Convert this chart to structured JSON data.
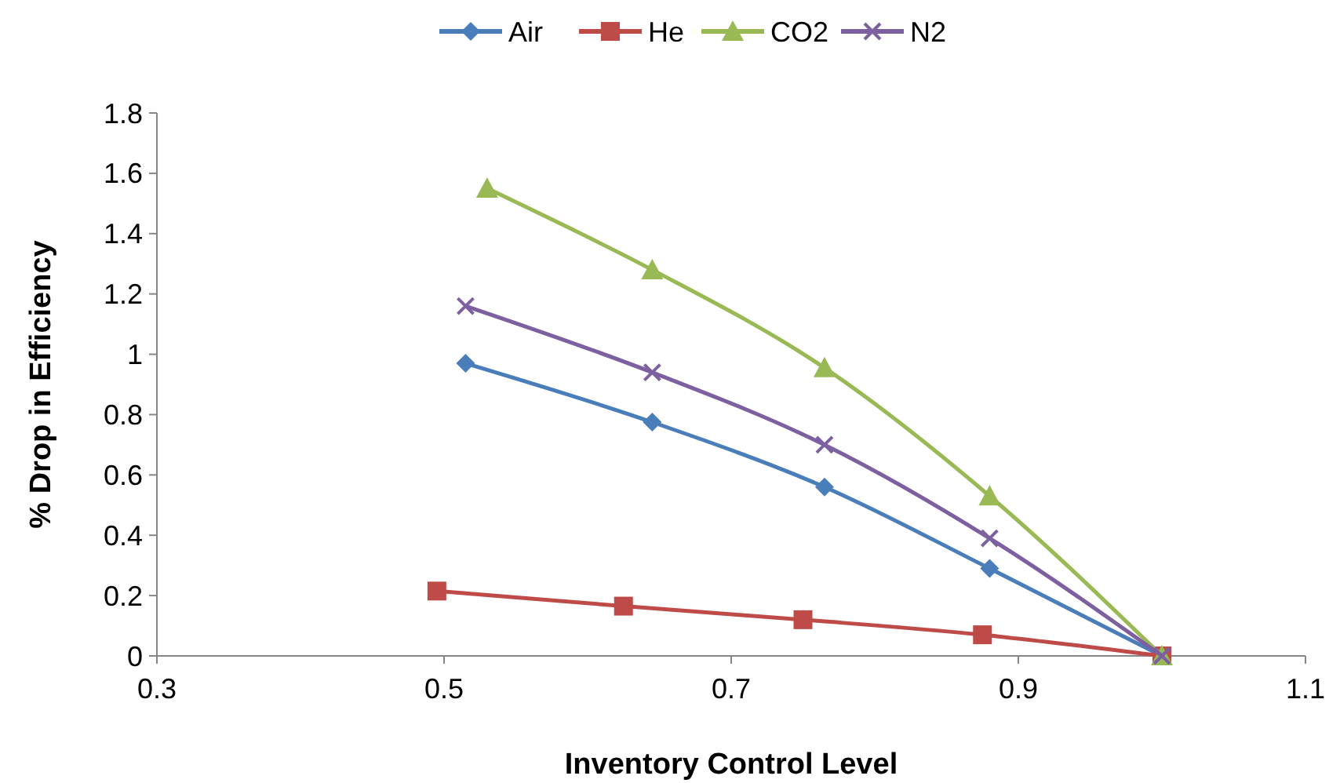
{
  "chart_data": {
    "type": "line",
    "xlabel": "Inventory Control Level",
    "ylabel": "% Drop in Efficiency",
    "xlim": [
      0.3,
      1.1
    ],
    "xticks": [
      0.3,
      0.5,
      0.7,
      0.9,
      1.1
    ],
    "ylim": [
      0,
      1.8
    ],
    "yticks": [
      0,
      0.2,
      0.4,
      0.6,
      0.8,
      1,
      1.2,
      1.4,
      1.6,
      1.8
    ],
    "grid": false,
    "legend": "top",
    "line_style": "solid",
    "series": [
      {
        "name": "Air",
        "color": "#4a7ebb",
        "marker": "diamond",
        "x": [
          0.515,
          0.645,
          0.765,
          0.88,
          1
        ],
        "values": [
          0.97,
          0.775,
          0.56,
          0.29,
          0
        ]
      },
      {
        "name": "He",
        "color": "#be4b48",
        "marker": "square",
        "x": [
          0.495,
          0.625,
          0.75,
          0.875,
          1
        ],
        "values": [
          0.215,
          0.165,
          0.12,
          0.07,
          0
        ]
      },
      {
        "name": "CO2",
        "color": "#98b954",
        "marker": "triangle",
        "x": [
          0.53,
          0.645,
          0.765,
          0.88,
          1
        ],
        "values": [
          1.55,
          1.28,
          0.955,
          0.53,
          0
        ]
      },
      {
        "name": "N2",
        "color": "#7d60a0",
        "marker": "cross",
        "x": [
          0.515,
          0.645,
          0.765,
          0.88,
          1
        ],
        "values": [
          1.16,
          0.94,
          0.7,
          0.39,
          0
        ]
      }
    ]
  }
}
